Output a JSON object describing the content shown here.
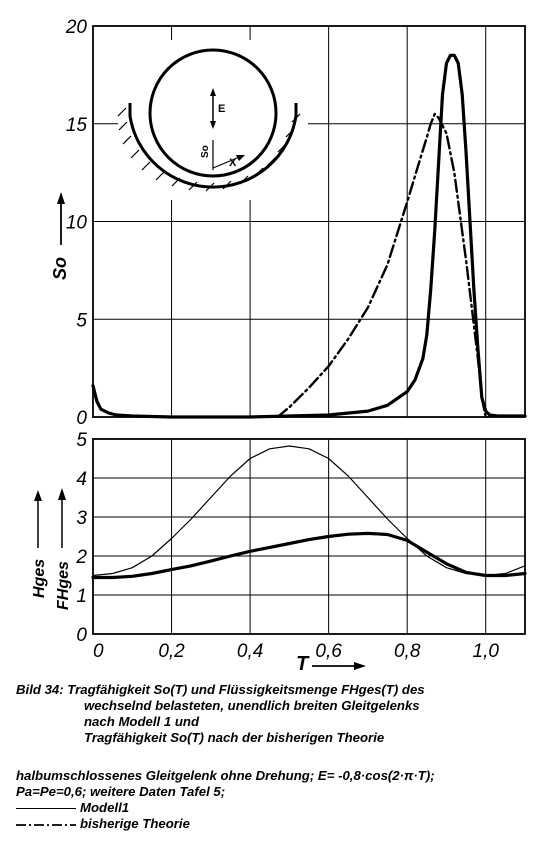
{
  "caption": {
    "line1": "Bild 34: Tragfähigkeit So(T) und Flüssigkeitsmenge FHges(T) des",
    "line2": "wechselnd belasteten, unendlich breiten Gleitgelenks",
    "line3": "nach Modell 1 und",
    "line4": "Tragfähigkeit So(T) nach der bisherigen Theorie",
    "note1": "halbumschlossenes Gleitgelenk ohne Drehung; E= -0,8·cos(2·π·T);",
    "note2": "Pa=Pe=0,6; weitere Daten Tafel 5;"
  },
  "legend": {
    "modell1": "Modell1",
    "bisherige": "bisherige Theorie"
  },
  "inset": {
    "label_E": "E",
    "label_So": "So",
    "label_X": "X"
  },
  "chart_data": [
    {
      "type": "line",
      "ylabel": "So",
      "xlim": [
        0,
        1.1
      ],
      "ylim": [
        0,
        20
      ],
      "yticks": [
        "0",
        "5",
        "10",
        "15",
        "20"
      ],
      "grid": true,
      "series": [
        {
          "name": "Modell1",
          "style": "solid-thick",
          "x": [
            0,
            0.01,
            0.02,
            0.04,
            0.06,
            0.1,
            0.2,
            0.3,
            0.4,
            0.5,
            0.6,
            0.7,
            0.75,
            0.8,
            0.82,
            0.84,
            0.85,
            0.86,
            0.87,
            0.88,
            0.89,
            0.9,
            0.91,
            0.92,
            0.93,
            0.94,
            0.95,
            0.96,
            0.97,
            0.98,
            0.99,
            1.0,
            1.01,
            1.03,
            1.06,
            1.1
          ],
          "y": [
            1.6,
            0.8,
            0.4,
            0.2,
            0.1,
            0.05,
            0.0,
            0.0,
            0.0,
            0.05,
            0.1,
            0.3,
            0.6,
            1.3,
            1.9,
            3.0,
            4.2,
            6.5,
            9.5,
            13.0,
            16.5,
            18.1,
            18.5,
            18.5,
            18.1,
            16.5,
            13.5,
            10.0,
            6.5,
            3.5,
            1.0,
            0.3,
            0.1,
            0.05,
            0.05,
            0.05
          ]
        },
        {
          "name": "bisherige Theorie",
          "style": "dash-dot",
          "x": [
            0.47,
            0.5,
            0.55,
            0.6,
            0.65,
            0.7,
            0.75,
            0.8,
            0.83,
            0.85,
            0.86,
            0.87,
            0.88,
            0.9,
            0.92,
            0.95,
            0.98,
            0.99,
            1.0
          ],
          "y": [
            0.0,
            0.5,
            1.5,
            2.6,
            4.0,
            5.6,
            7.8,
            11.0,
            13.0,
            14.3,
            15.0,
            15.5,
            15.3,
            14.5,
            12.5,
            8.0,
            3.0,
            1.0,
            0.0
          ]
        }
      ]
    },
    {
      "type": "line",
      "ylabel": "Hges / FHges",
      "xlabel": "T",
      "xlim": [
        0,
        1.1
      ],
      "ylim": [
        0,
        5
      ],
      "xticks": [
        "0",
        "0,2",
        "0,4",
        "0,6",
        "0,8",
        "1,0"
      ],
      "yticks": [
        "0",
        "1",
        "2",
        "3",
        "4",
        "5"
      ],
      "grid": true,
      "series": [
        {
          "name": "Hges",
          "style": "solid-thin",
          "x": [
            0,
            0.05,
            0.1,
            0.15,
            0.2,
            0.25,
            0.3,
            0.35,
            0.4,
            0.45,
            0.5,
            0.55,
            0.6,
            0.65,
            0.7,
            0.75,
            0.8,
            0.85,
            0.9,
            0.95,
            1.0,
            1.05,
            1.1
          ],
          "y": [
            1.5,
            1.55,
            1.7,
            2.0,
            2.45,
            2.95,
            3.5,
            4.05,
            4.5,
            4.75,
            4.82,
            4.75,
            4.5,
            4.05,
            3.5,
            2.95,
            2.45,
            2.0,
            1.7,
            1.55,
            1.5,
            1.55,
            1.75
          ]
        },
        {
          "name": "FHges",
          "style": "solid-thick",
          "x": [
            0,
            0.05,
            0.1,
            0.15,
            0.2,
            0.25,
            0.3,
            0.35,
            0.4,
            0.45,
            0.5,
            0.55,
            0.6,
            0.65,
            0.7,
            0.75,
            0.8,
            0.85,
            0.9,
            0.95,
            1.0,
            1.05,
            1.1
          ],
          "y": [
            1.45,
            1.45,
            1.48,
            1.55,
            1.65,
            1.75,
            1.87,
            2.0,
            2.12,
            2.22,
            2.32,
            2.42,
            2.5,
            2.56,
            2.58,
            2.55,
            2.4,
            2.1,
            1.8,
            1.58,
            1.5,
            1.5,
            1.55
          ]
        }
      ]
    }
  ]
}
